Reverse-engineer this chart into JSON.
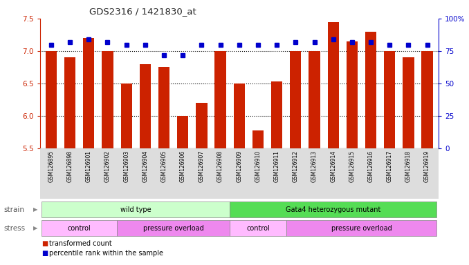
{
  "title": "GDS2316 / 1421830_at",
  "samples": [
    "GSM126895",
    "GSM126898",
    "GSM126901",
    "GSM126902",
    "GSM126903",
    "GSM126904",
    "GSM126905",
    "GSM126906",
    "GSM126907",
    "GSM126908",
    "GSM126909",
    "GSM126910",
    "GSM126911",
    "GSM126912",
    "GSM126913",
    "GSM126914",
    "GSM126915",
    "GSM126916",
    "GSM126917",
    "GSM126918",
    "GSM126919"
  ],
  "transformed_count": [
    7.0,
    6.9,
    7.2,
    7.0,
    6.5,
    6.8,
    6.75,
    6.0,
    6.2,
    7.0,
    6.5,
    5.78,
    6.53,
    7.0,
    7.0,
    7.45,
    7.15,
    7.3,
    7.0,
    6.9,
    7.0
  ],
  "percentile_rank": [
    80,
    82,
    84,
    82,
    80,
    80,
    72,
    72,
    80,
    80,
    80,
    80,
    80,
    82,
    82,
    84,
    82,
    82,
    80,
    80,
    80
  ],
  "strain_groups": [
    {
      "label": "wild type",
      "start": 0,
      "end": 10,
      "color": "#ccffcc"
    },
    {
      "label": "Gata4 heterozygous mutant",
      "start": 10,
      "end": 21,
      "color": "#55dd55"
    }
  ],
  "stress_groups": [
    {
      "label": "control",
      "start": 0,
      "end": 4,
      "color": "#ffbbff"
    },
    {
      "label": "pressure overload",
      "start": 4,
      "end": 10,
      "color": "#ee88ee"
    },
    {
      "label": "control",
      "start": 10,
      "end": 13,
      "color": "#ffbbff"
    },
    {
      "label": "pressure overload",
      "start": 13,
      "end": 21,
      "color": "#ee88ee"
    }
  ],
  "bar_color": "#cc2200",
  "dot_color": "#0000cc",
  "ylim_left": [
    5.5,
    7.5
  ],
  "ylim_right": [
    0,
    100
  ],
  "yticks_left": [
    5.5,
    6.0,
    6.5,
    7.0,
    7.5
  ],
  "yticks_right": [
    0,
    25,
    50,
    75,
    100
  ],
  "grid_values": [
    6.0,
    6.5,
    7.0
  ],
  "left_axis_color": "#cc2200",
  "right_axis_color": "#0000cc",
  "bar_width": 0.6,
  "tick_bg_color": "#dddddd"
}
